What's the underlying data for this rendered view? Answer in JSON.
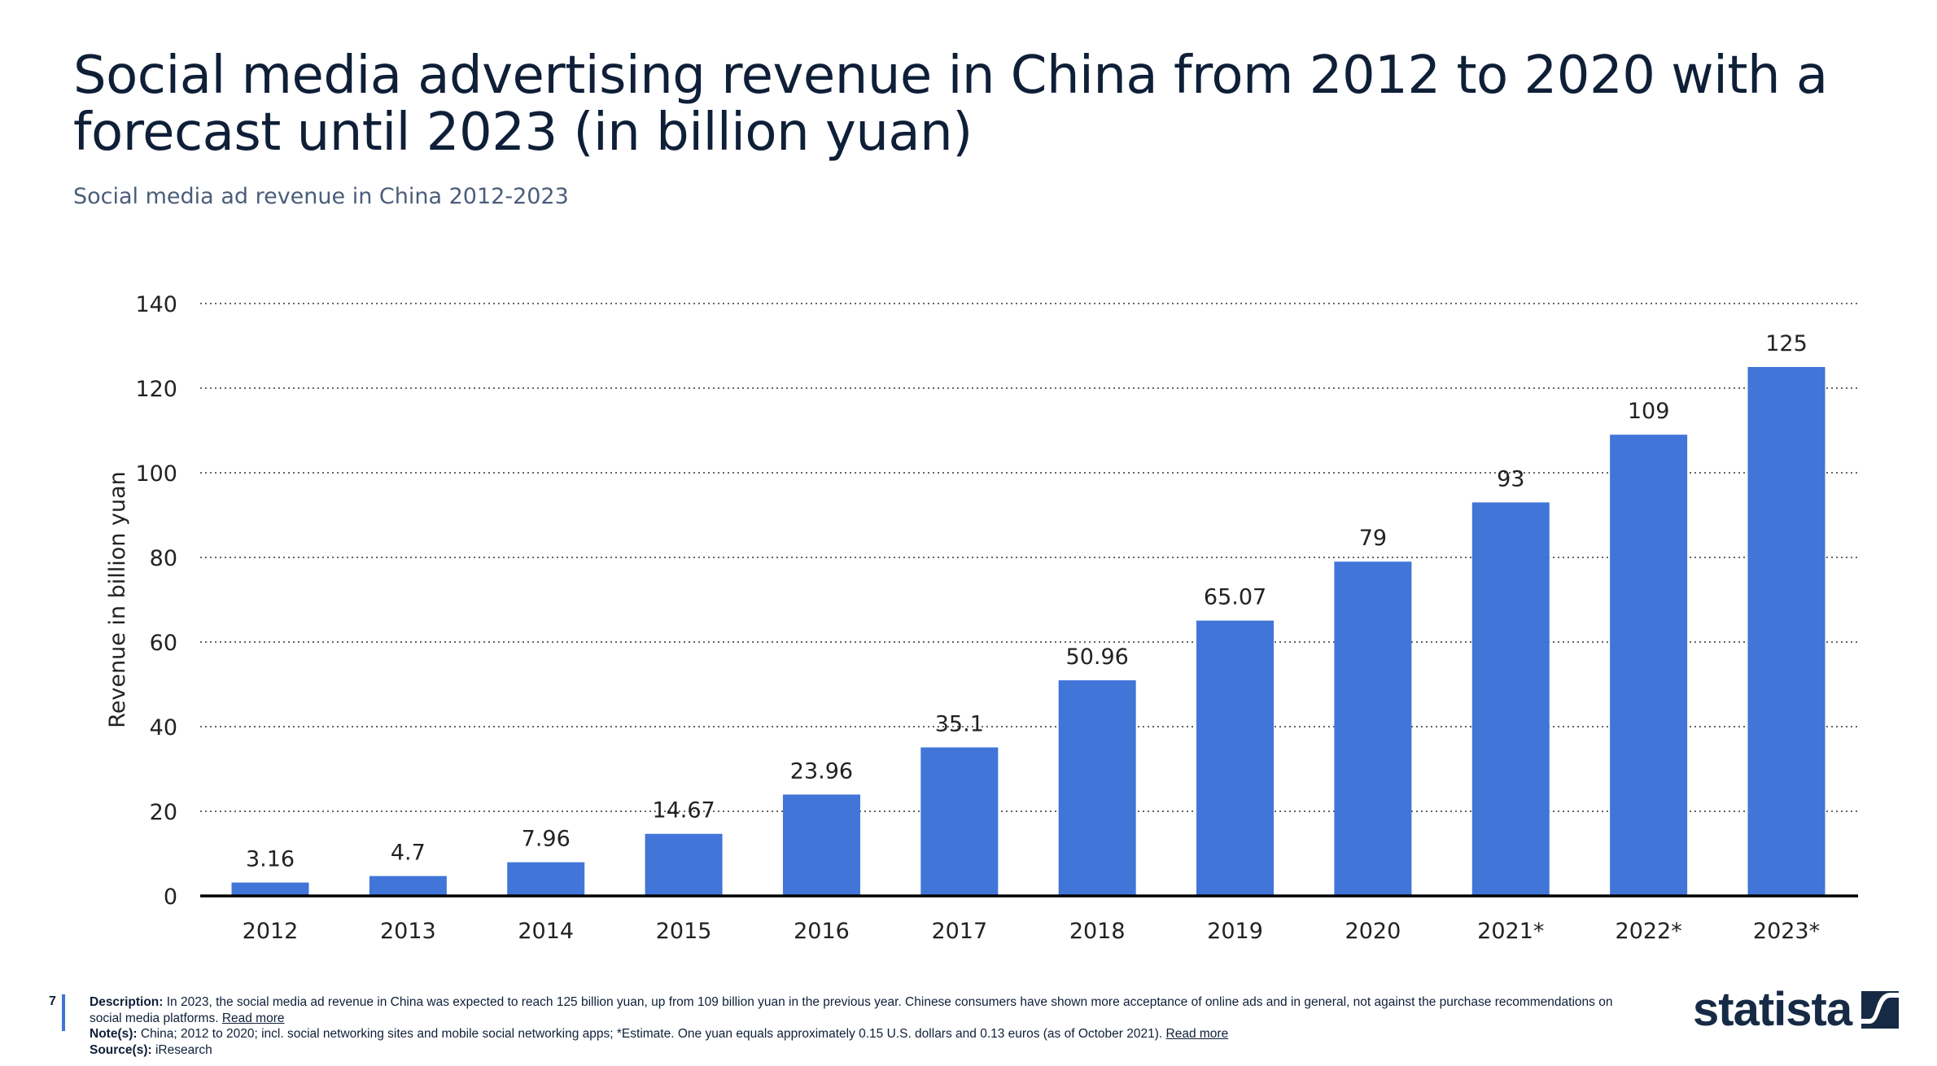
{
  "title": "Social media advertising revenue in China from 2012 to 2020 with a forecast until 2023 (in billion yuan)",
  "subtitle": "Social media ad revenue in China 2012-2023",
  "chart_data": {
    "type": "bar",
    "categories": [
      "2012",
      "2013",
      "2014",
      "2015",
      "2016",
      "2017",
      "2018",
      "2019",
      "2020",
      "2021*",
      "2022*",
      "2023*"
    ],
    "values": [
      3.16,
      4.7,
      7.96,
      14.67,
      23.96,
      35.1,
      50.96,
      65.07,
      79,
      93,
      109,
      125
    ],
    "data_labels": [
      "3.16",
      "4.7",
      "7.96",
      "14.67",
      "23.96",
      "35.1",
      "50.96",
      "65.07",
      "79",
      "93",
      "109",
      "125"
    ],
    "ylabel": "Revenue in billion yuan",
    "xlabel": "",
    "ylim": [
      0,
      140
    ],
    "yticks": [
      0,
      20,
      40,
      60,
      80,
      100,
      120,
      140
    ],
    "grid": true,
    "bar_color": "#4175d8"
  },
  "footer": {
    "page_number": "7",
    "description_label": "Description:",
    "description": " In 2023, the social media ad revenue in China was expected to reach 125 billion yuan, up from 109 billion yuan in the previous year. Chinese consumers have shown more acceptance of online ads and in general, not against the purchase recommendations on social media platforms. ",
    "read_more": "Read more",
    "notes_label": "Note(s):",
    "notes": " China; 2012 to 2020; incl. social networking sites and mobile social networking apps; *Estimate. One yuan equals approximately 0.15 U.S. dollars and 0.13 euros (as of October 2021). ",
    "sources_label": "Source(s):",
    "sources": " iResearch"
  },
  "logo": {
    "text": "statista",
    "color": "#172a45"
  }
}
